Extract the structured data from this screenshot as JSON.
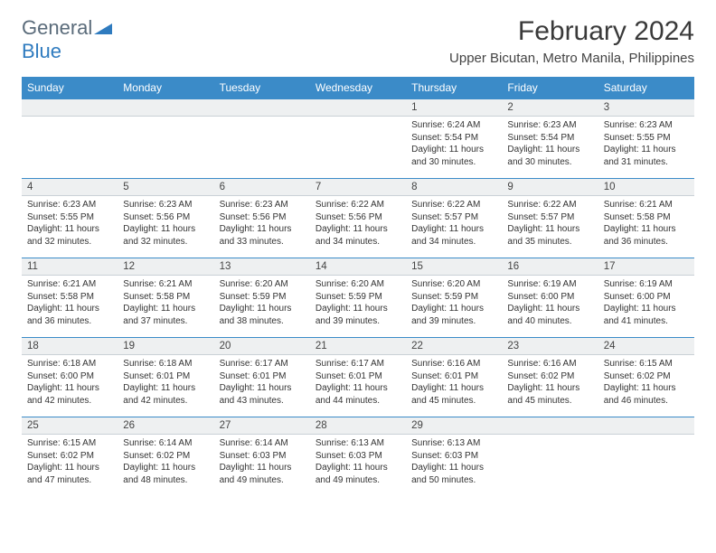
{
  "logo": {
    "general": "General",
    "blue": "Blue"
  },
  "title": "February 2024",
  "location": "Upper Bicutan, Metro Manila, Philippines",
  "colors": {
    "header_bg": "#3b8bc8",
    "header_text": "#ffffff",
    "daybar_bg": "#eef0f1",
    "daybar_border_top": "#3b8bc8",
    "logo_gray": "#5a6b7a",
    "logo_blue": "#2f7bbf"
  },
  "dayHeaders": [
    "Sunday",
    "Monday",
    "Tuesday",
    "Wednesday",
    "Thursday",
    "Friday",
    "Saturday"
  ],
  "weeks": [
    [
      {
        "n": "",
        "lines": []
      },
      {
        "n": "",
        "lines": []
      },
      {
        "n": "",
        "lines": []
      },
      {
        "n": "",
        "lines": []
      },
      {
        "n": "1",
        "lines": [
          "Sunrise: 6:24 AM",
          "Sunset: 5:54 PM",
          "Daylight: 11 hours and 30 minutes."
        ]
      },
      {
        "n": "2",
        "lines": [
          "Sunrise: 6:23 AM",
          "Sunset: 5:54 PM",
          "Daylight: 11 hours and 30 minutes."
        ]
      },
      {
        "n": "3",
        "lines": [
          "Sunrise: 6:23 AM",
          "Sunset: 5:55 PM",
          "Daylight: 11 hours and 31 minutes."
        ]
      }
    ],
    [
      {
        "n": "4",
        "lines": [
          "Sunrise: 6:23 AM",
          "Sunset: 5:55 PM",
          "Daylight: 11 hours and 32 minutes."
        ]
      },
      {
        "n": "5",
        "lines": [
          "Sunrise: 6:23 AM",
          "Sunset: 5:56 PM",
          "Daylight: 11 hours and 32 minutes."
        ]
      },
      {
        "n": "6",
        "lines": [
          "Sunrise: 6:23 AM",
          "Sunset: 5:56 PM",
          "Daylight: 11 hours and 33 minutes."
        ]
      },
      {
        "n": "7",
        "lines": [
          "Sunrise: 6:22 AM",
          "Sunset: 5:56 PM",
          "Daylight: 11 hours and 34 minutes."
        ]
      },
      {
        "n": "8",
        "lines": [
          "Sunrise: 6:22 AM",
          "Sunset: 5:57 PM",
          "Daylight: 11 hours and 34 minutes."
        ]
      },
      {
        "n": "9",
        "lines": [
          "Sunrise: 6:22 AM",
          "Sunset: 5:57 PM",
          "Daylight: 11 hours and 35 minutes."
        ]
      },
      {
        "n": "10",
        "lines": [
          "Sunrise: 6:21 AM",
          "Sunset: 5:58 PM",
          "Daylight: 11 hours and 36 minutes."
        ]
      }
    ],
    [
      {
        "n": "11",
        "lines": [
          "Sunrise: 6:21 AM",
          "Sunset: 5:58 PM",
          "Daylight: 11 hours and 36 minutes."
        ]
      },
      {
        "n": "12",
        "lines": [
          "Sunrise: 6:21 AM",
          "Sunset: 5:58 PM",
          "Daylight: 11 hours and 37 minutes."
        ]
      },
      {
        "n": "13",
        "lines": [
          "Sunrise: 6:20 AM",
          "Sunset: 5:59 PM",
          "Daylight: 11 hours and 38 minutes."
        ]
      },
      {
        "n": "14",
        "lines": [
          "Sunrise: 6:20 AM",
          "Sunset: 5:59 PM",
          "Daylight: 11 hours and 39 minutes."
        ]
      },
      {
        "n": "15",
        "lines": [
          "Sunrise: 6:20 AM",
          "Sunset: 5:59 PM",
          "Daylight: 11 hours and 39 minutes."
        ]
      },
      {
        "n": "16",
        "lines": [
          "Sunrise: 6:19 AM",
          "Sunset: 6:00 PM",
          "Daylight: 11 hours and 40 minutes."
        ]
      },
      {
        "n": "17",
        "lines": [
          "Sunrise: 6:19 AM",
          "Sunset: 6:00 PM",
          "Daylight: 11 hours and 41 minutes."
        ]
      }
    ],
    [
      {
        "n": "18",
        "lines": [
          "Sunrise: 6:18 AM",
          "Sunset: 6:00 PM",
          "Daylight: 11 hours and 42 minutes."
        ]
      },
      {
        "n": "19",
        "lines": [
          "Sunrise: 6:18 AM",
          "Sunset: 6:01 PM",
          "Daylight: 11 hours and 42 minutes."
        ]
      },
      {
        "n": "20",
        "lines": [
          "Sunrise: 6:17 AM",
          "Sunset: 6:01 PM",
          "Daylight: 11 hours and 43 minutes."
        ]
      },
      {
        "n": "21",
        "lines": [
          "Sunrise: 6:17 AM",
          "Sunset: 6:01 PM",
          "Daylight: 11 hours and 44 minutes."
        ]
      },
      {
        "n": "22",
        "lines": [
          "Sunrise: 6:16 AM",
          "Sunset: 6:01 PM",
          "Daylight: 11 hours and 45 minutes."
        ]
      },
      {
        "n": "23",
        "lines": [
          "Sunrise: 6:16 AM",
          "Sunset: 6:02 PM",
          "Daylight: 11 hours and 45 minutes."
        ]
      },
      {
        "n": "24",
        "lines": [
          "Sunrise: 6:15 AM",
          "Sunset: 6:02 PM",
          "Daylight: 11 hours and 46 minutes."
        ]
      }
    ],
    [
      {
        "n": "25",
        "lines": [
          "Sunrise: 6:15 AM",
          "Sunset: 6:02 PM",
          "Daylight: 11 hours and 47 minutes."
        ]
      },
      {
        "n": "26",
        "lines": [
          "Sunrise: 6:14 AM",
          "Sunset: 6:02 PM",
          "Daylight: 11 hours and 48 minutes."
        ]
      },
      {
        "n": "27",
        "lines": [
          "Sunrise: 6:14 AM",
          "Sunset: 6:03 PM",
          "Daylight: 11 hours and 49 minutes."
        ]
      },
      {
        "n": "28",
        "lines": [
          "Sunrise: 6:13 AM",
          "Sunset: 6:03 PM",
          "Daylight: 11 hours and 49 minutes."
        ]
      },
      {
        "n": "29",
        "lines": [
          "Sunrise: 6:13 AM",
          "Sunset: 6:03 PM",
          "Daylight: 11 hours and 50 minutes."
        ]
      },
      {
        "n": "",
        "lines": []
      },
      {
        "n": "",
        "lines": []
      }
    ]
  ]
}
